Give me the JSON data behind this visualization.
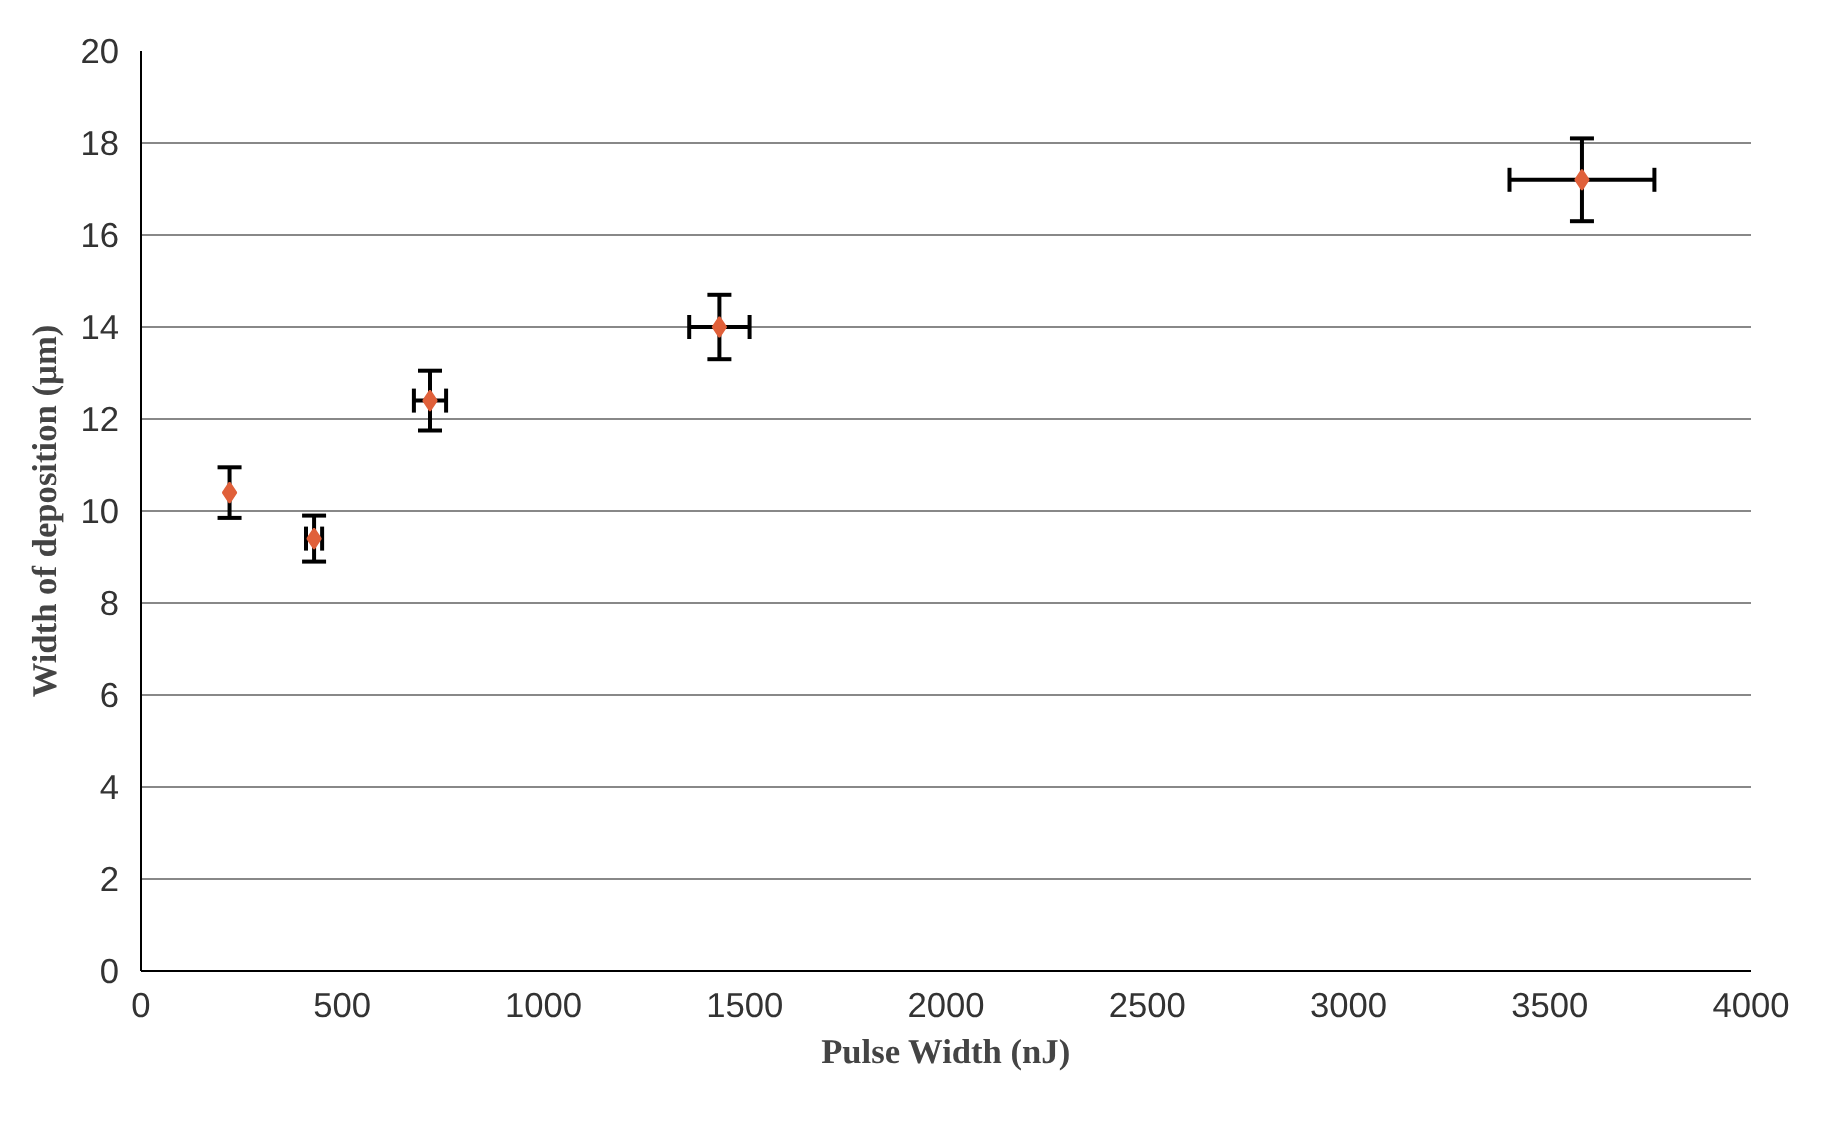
{
  "chart_data": {
    "type": "scatter",
    "xlabel": "Pulse Width (nJ)",
    "ylabel": "Width of deposition (µm)",
    "x": [
      220,
      430,
      718,
      1437,
      3580
    ],
    "values": [
      10.4,
      9.4,
      12.4,
      14.0,
      17.2
    ],
    "errors": [
      0.55,
      0.5,
      0.65,
      0.7,
      0.9
    ],
    "xerrors": [
      null,
      20,
      40,
      75,
      180
    ],
    "color": "#e0603a",
    "marker": "diamond",
    "xlim": [
      0,
      4000
    ],
    "xticks": [
      0,
      500,
      1000,
      1500,
      2000,
      2500,
      3000,
      3500,
      4000
    ],
    "ylim": [
      0,
      20
    ],
    "yticks": [
      0,
      2,
      4,
      6,
      8,
      10,
      12,
      14,
      16,
      18,
      20
    ],
    "grid": "y"
  }
}
